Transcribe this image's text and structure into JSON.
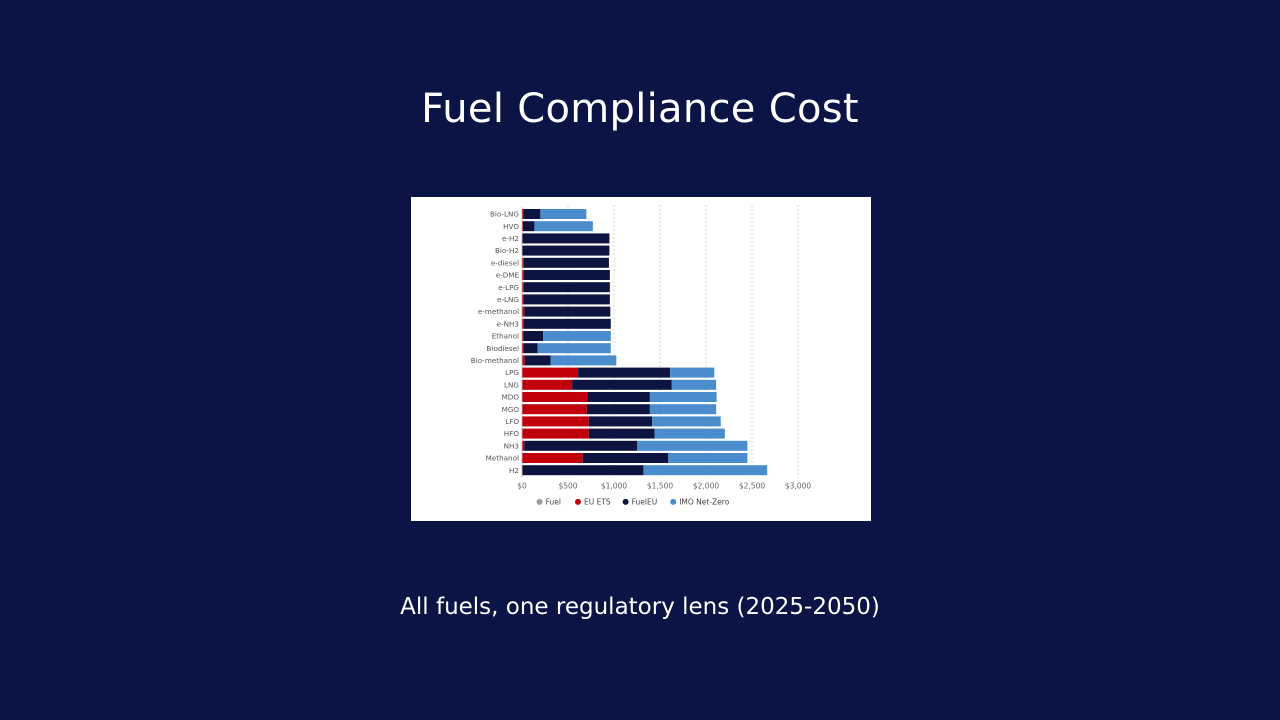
{
  "slide": {
    "title": "Fuel Compliance Cost",
    "subtitle": "All fuels, one regulatory lens (2025-2050)"
  },
  "colors": {
    "background": "#0b1445",
    "Fuel": "#9e9e9e",
    "EU ETS": "#c0000a",
    "FuelEU": "#0d1440",
    "IMO Net-Zero": "#4a8ccc"
  },
  "chart_data": {
    "type": "bar",
    "orientation": "horizontal",
    "stacked": true,
    "title": "",
    "xlabel": "",
    "ylabel": "",
    "xlim": [
      0,
      3000
    ],
    "xticks": [
      0,
      500,
      1000,
      1500,
      2000,
      2500,
      3000
    ],
    "xtick_labels": [
      "$0",
      "$500",
      "$1,000",
      "$1,500",
      "$2,000",
      "$2,500",
      "$3,000"
    ],
    "grid": "vertical-dotted",
    "legend": "bottom",
    "categories": [
      "Bio-LNG",
      "HVO",
      "e-H2",
      "Bio-H2",
      "e-diesel",
      "e-DME",
      "e-LPG",
      "e-LNG",
      "e-methanol",
      "e-NH3",
      "Ethanol",
      "Biodiesel",
      "Bio-methanol",
      "LPG",
      "LNG",
      "MDO",
      "MGO",
      "LFO",
      "HFO",
      "NH3",
      "Methanol",
      "H2"
    ],
    "series": [
      {
        "name": "Fuel",
        "values": [
          0,
          0,
          0,
          0,
          0,
          0,
          0,
          0,
          0,
          0,
          0,
          0,
          0,
          0,
          0,
          0,
          0,
          0,
          0,
          0,
          0,
          0
        ]
      },
      {
        "name": "EU ETS",
        "values": [
          15,
          10,
          5,
          5,
          20,
          20,
          20,
          15,
          25,
          20,
          15,
          15,
          30,
          610,
          545,
          710,
          705,
          725,
          725,
          25,
          660,
          5
        ]
      },
      {
        "name": "FuelEU",
        "values": [
          185,
          125,
          945,
          945,
          925,
          935,
          935,
          940,
          935,
          945,
          215,
          155,
          280,
          1000,
          1080,
          680,
          685,
          690,
          715,
          1225,
          930,
          1315
        ]
      },
      {
        "name": "IMO Net-Zero",
        "values": [
          500,
          635,
          0,
          0,
          0,
          0,
          0,
          0,
          0,
          0,
          735,
          795,
          715,
          480,
          485,
          725,
          720,
          745,
          765,
          1200,
          860,
          1345
        ]
      }
    ]
  }
}
